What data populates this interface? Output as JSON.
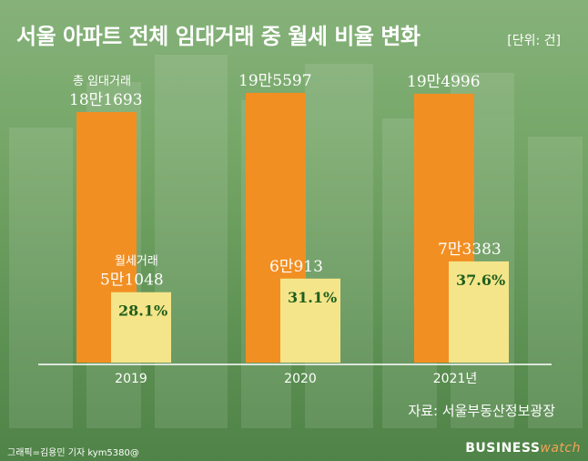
{
  "title": "서울 아파트 전체 임대거래 중 월세 비율 변화",
  "unit_label": "[단위: 건]",
  "source": "자료: 서울부동산정보광장",
  "credit": "그래픽=김용민 기자 kym5380@",
  "brand": {
    "bold": "BUSINESS",
    "light": "watch"
  },
  "colors": {
    "total_bar": "#f28f22",
    "monthly_bar": "#f5e58a",
    "percent_text": "#1f5f1c",
    "label_text": "#ffffff"
  },
  "chart_data": {
    "type": "bar",
    "categories": [
      "2019",
      "2020",
      "2021년"
    ],
    "series": [
      {
        "name": "총 임대거래",
        "values": [
          181693,
          195597,
          194996
        ],
        "labels": [
          "18만1693",
          "19만5597",
          "19만4996"
        ]
      },
      {
        "name": "월세거래",
        "values": [
          51048,
          60913,
          73383
        ],
        "labels": [
          "5만1048",
          "6만913",
          "7만3383"
        ]
      }
    ],
    "ratios": [
      "28.1%",
      "31.1%",
      "37.6%"
    ],
    "legend": "inline",
    "grid": false
  }
}
